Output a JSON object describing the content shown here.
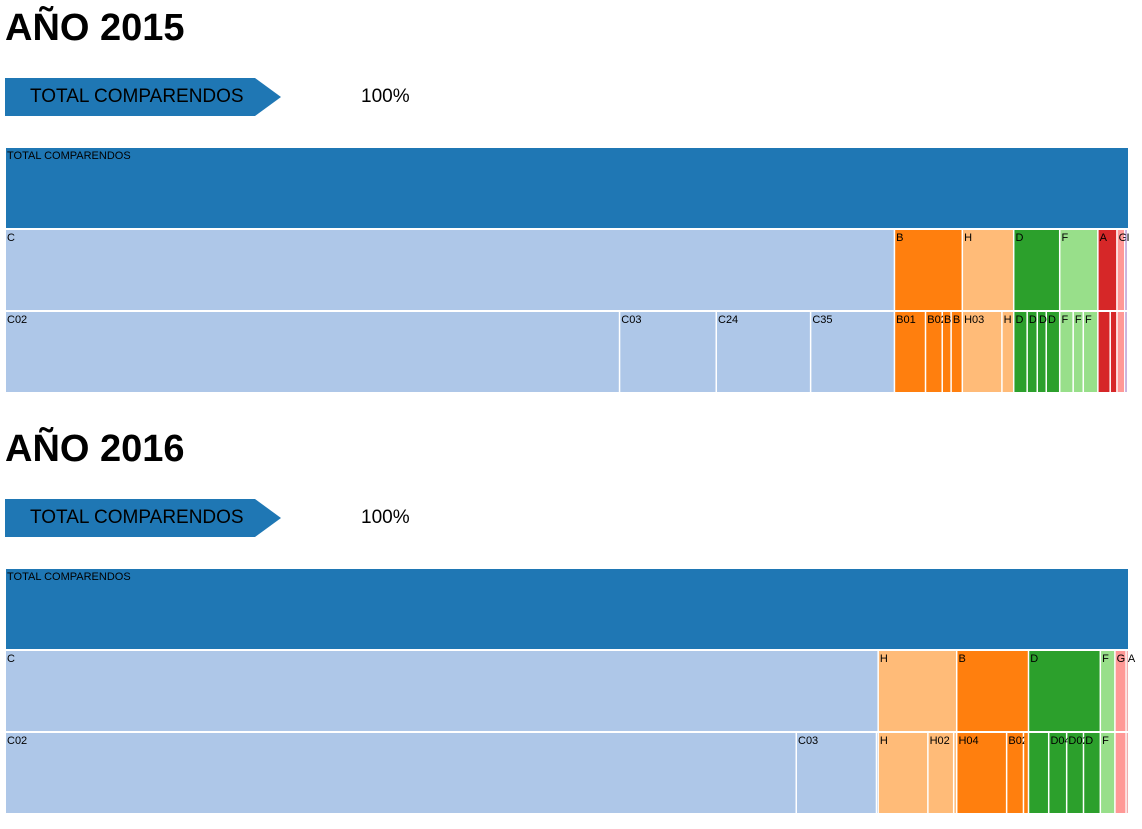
{
  "colors": {
    "total": "#1f77b4",
    "C": "#aec7e8",
    "B": "#ff7f0e",
    "H": "#ffbb78",
    "D": "#2ca02c",
    "F": "#98df8a",
    "A": "#d62728",
    "G": "#ff9896",
    "I": "#9467bd",
    "breadcrumb": "#1f77b4"
  },
  "years": [
    {
      "title": "AÑO 2015",
      "breadcrumb_label": "TOTAL COMPARENDOS",
      "percentage": "100%",
      "chart_data": {
        "type": "icicle",
        "root": "TOTAL COMPARENDOS",
        "unit": "share of total",
        "levels": [
          [
            "TOTAL COMPARENDOS"
          ],
          [
            "C",
            "B",
            "H",
            "D",
            "F",
            "A",
            "G",
            "I"
          ],
          [
            "C02",
            "C03",
            "C24",
            "C35",
            "B01",
            "B02",
            "B",
            "B",
            "H03",
            "H",
            "H",
            "D",
            "D",
            "D",
            "F",
            "F"
          ]
        ],
        "groups": [
          {
            "name": "C",
            "share": 0.7925,
            "children": [
              {
                "name": "C02",
                "share": 0.5475
              },
              {
                "name": "C03",
                "share": 0.0862
              },
              {
                "name": "C24",
                "share": 0.0841
              },
              {
                "name": "C35",
                "share": 0.0747
              }
            ]
          },
          {
            "name": "B",
            "share": 0.0605,
            "children": [
              {
                "name": "B01",
                "share": 0.0277
              },
              {
                "name": "B02",
                "share": 0.0149
              },
              {
                "name": "B",
                "share": 0.0079
              },
              {
                "name": "B",
                "share": 0.01
              }
            ]
          },
          {
            "name": "H",
            "share": 0.0458,
            "children": [
              {
                "name": "H03",
                "share": 0.0353
              },
              {
                "name": "H",
                "share": 0.0105
              }
            ]
          },
          {
            "name": "D",
            "share": 0.041,
            "children": [
              {
                "name": "D",
                "share": 0.012
              },
              {
                "name": "D",
                "share": 0.009
              },
              {
                "name": "D",
                "share": 0.008
              },
              {
                "name": "D",
                "share": 0.012
              }
            ]
          },
          {
            "name": "F",
            "share": 0.034,
            "children": [
              {
                "name": "F",
                "share": 0.012
              },
              {
                "name": "F",
                "share": 0.009
              },
              {
                "name": "F",
                "share": 0.013
              }
            ]
          },
          {
            "name": "A",
            "share": 0.017,
            "children": [
              {
                "name": "",
                "share": 0.011
              },
              {
                "name": "",
                "share": 0.006
              }
            ]
          },
          {
            "name": "G",
            "share": 0.007,
            "children": [
              {
                "name": "",
                "share": 0.007
              }
            ]
          },
          {
            "name": "I",
            "share": 0.0022,
            "children": [
              {
                "name": "",
                "share": 0.0022
              }
            ]
          }
        ]
      }
    },
    {
      "title": "AÑO 2016",
      "breadcrumb_label": "TOTAL COMPARENDOS",
      "percentage": "100%",
      "chart_data": {
        "type": "icicle",
        "root": "TOTAL COMPARENDOS",
        "unit": "share of total",
        "groups": [
          {
            "name": "C",
            "share": 0.778,
            "children": [
              {
                "name": "C02",
                "share": 0.705
              },
              {
                "name": "C03",
                "share": 0.0715
              },
              {
                "name": "",
                "share": 0.0015
              }
            ]
          },
          {
            "name": "H",
            "share": 0.07,
            "children": [
              {
                "name": "H",
                "share": 0.0443
              },
              {
                "name": "H02",
                "share": 0.023
              },
              {
                "name": "",
                "share": 0.0027
              }
            ]
          },
          {
            "name": "B",
            "share": 0.064,
            "children": [
              {
                "name": "H04",
                "share": 0.0445
              },
              {
                "name": "B02",
                "share": 0.015
              },
              {
                "name": "",
                "share": 0.0045
              }
            ]
          },
          {
            "name": "D",
            "share": 0.064,
            "children": [
              {
                "name": "",
                "share": 0.018
              },
              {
                "name": "D04",
                "share": 0.016
              },
              {
                "name": "D02",
                "share": 0.015
              },
              {
                "name": "D",
                "share": 0.015
              }
            ]
          },
          {
            "name": "F",
            "share": 0.013,
            "children": [
              {
                "name": "F",
                "share": 0.013
              }
            ]
          },
          {
            "name": "G",
            "share": 0.01,
            "children": [
              {
                "name": "",
                "share": 0.01
              }
            ]
          },
          {
            "name": "A",
            "share": 0.001,
            "children": [
              {
                "name": "",
                "share": 0.001
              }
            ]
          }
        ]
      }
    }
  ]
}
